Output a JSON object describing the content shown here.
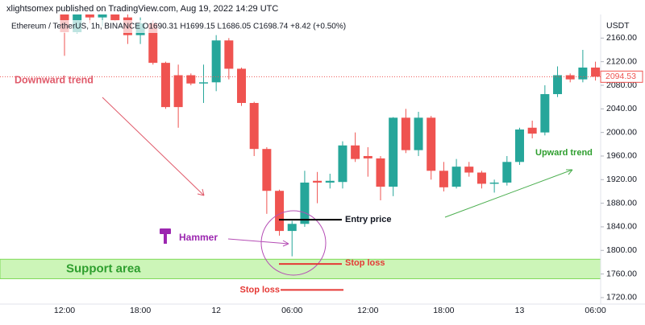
{
  "header": "xlightsomex published on TradingView.com, Aug 19, 2022 14:29 UTC",
  "chart_data": {
    "type": "candlestick",
    "title": "Ethereum / TetherUS, 1h, BINANCE O1690.31 H1699.15 L1686.05 C1698.74 +8.42 (+0.50%)",
    "y_unit": "USDT",
    "categories": [
      "12:00",
      null,
      null,
      null,
      null,
      null,
      "18:00",
      null,
      null,
      null,
      null,
      null,
      "12",
      null,
      null,
      null,
      null,
      null,
      "06:00",
      null,
      null,
      null,
      null,
      null,
      "12:00",
      null,
      null,
      null,
      null,
      null,
      "18:00",
      null,
      null,
      null,
      null,
      null,
      "13",
      null,
      null,
      null,
      null,
      null,
      "06:00"
    ],
    "open": [
      2200,
      2170,
      2200,
      2195,
      2200,
      2195,
      2165,
      2185,
      2118,
      2097,
      2097,
      2083,
      2085,
      2156,
      2108,
      2050,
      1972,
      1901,
      1833,
      1845,
      1918,
      1915,
      1916,
      1978,
      1960,
      1956,
      1908,
      2025,
      1970,
      2025,
      1935,
      1908,
      1942,
      1932,
      1913,
      1915,
      1950,
      2008,
      2000,
      2065,
      2097,
      2090,
      2110
    ],
    "high": [
      2200,
      2200,
      2200,
      2200,
      2200,
      2200,
      2195,
      2190,
      2120,
      2115,
      2100,
      2115,
      2165,
      2160,
      2110,
      2052,
      1975,
      1903,
      1850,
      1935,
      1933,
      1930,
      1985,
      2000,
      1975,
      1960,
      2026,
      2040,
      2035,
      2028,
      1950,
      1955,
      1950,
      1935,
      1920,
      1960,
      2008,
      2020,
      2080,
      2112,
      2100,
      2140,
      2120
    ],
    "low": [
      2130,
      2168,
      2185,
      2180,
      2188,
      2150,
      2150,
      2115,
      2040,
      2008,
      2080,
      2050,
      2070,
      2090,
      2045,
      1960,
      1862,
      1825,
      1790,
      1840,
      1880,
      1905,
      1905,
      1950,
      1925,
      1885,
      1892,
      1965,
      1960,
      1920,
      1900,
      1905,
      1925,
      1905,
      1898,
      1910,
      1945,
      1990,
      1995,
      2060,
      2085,
      2085,
      2088
    ],
    "close": [
      2170,
      2200,
      2195,
      2200,
      2190,
      2165,
      2185,
      2118,
      2043,
      2043,
      2083,
      2085,
      2156,
      2108,
      2050,
      1972,
      1901,
      1833,
      1845,
      1915,
      1915,
      1918,
      1978,
      1955,
      1956,
      1908,
      2025,
      1970,
      2025,
      1935,
      1907,
      1942,
      1932,
      1913,
      1915,
      1950,
      2005,
      1998,
      2065,
      2097,
      2090,
      2110,
      2094.53
    ],
    "up_color": "#26a69a",
    "down_color": "#ef5350",
    "ylim": [
      1709,
      2200
    ],
    "yticks": [
      {
        "value": 1720,
        "label": "1720.00"
      },
      {
        "value": 1760,
        "label": "1760.00"
      },
      {
        "value": 1800,
        "label": "1800.00"
      },
      {
        "value": 1840,
        "label": "1840.00"
      },
      {
        "value": 1880,
        "label": "1880.00"
      },
      {
        "value": 1920,
        "label": "1920.00"
      },
      {
        "value": 1960,
        "label": "1960.00"
      },
      {
        "value": 2000,
        "label": "2000.00"
      },
      {
        "value": 2040,
        "label": "2040.00"
      },
      {
        "value": 2080,
        "label": "2080.00"
      },
      {
        "value": 2120,
        "label": "2120.00"
      },
      {
        "value": 2160,
        "label": "2160.00"
      }
    ],
    "current_price": 2094.53,
    "annotations": {
      "downward_trend": "Downward trend",
      "upward_trend": "Upward trend",
      "hammer": "Hammer",
      "entry_price": {
        "label": "Entry price",
        "value": 1852
      },
      "stop_loss": [
        {
          "label": "Stop loss",
          "value": 1777
        },
        {
          "label": "Stop loss",
          "value": 1733
        }
      ],
      "support_area": {
        "label": "Support area",
        "range": [
          1752,
          1785
        ]
      }
    }
  }
}
